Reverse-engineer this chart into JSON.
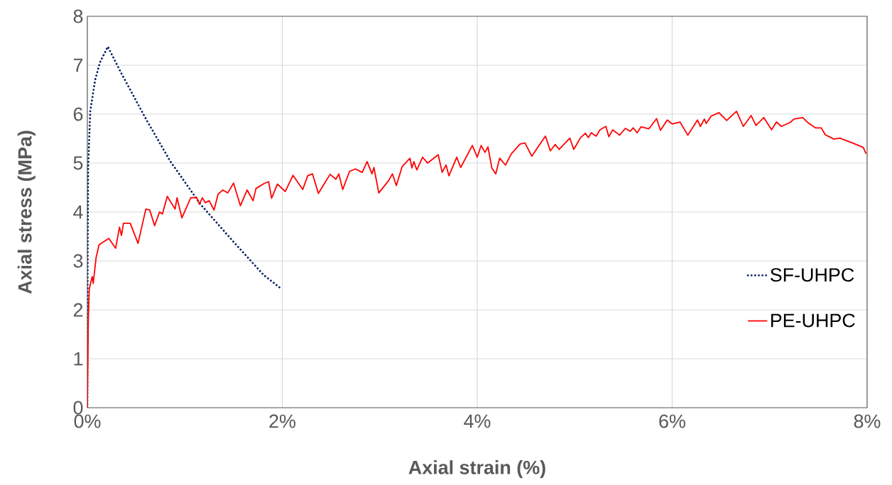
{
  "chart_data": {
    "type": "line",
    "xlabel": "Axial strain (%)",
    "ylabel": "Axial stress (MPa)",
    "xlim": [
      0,
      8
    ],
    "ylim": [
      0,
      8
    ],
    "xticks": [
      {
        "value": 0,
        "label": "0%"
      },
      {
        "value": 2,
        "label": "2%"
      },
      {
        "value": 4,
        "label": "4%"
      },
      {
        "value": 6,
        "label": "6%"
      },
      {
        "value": 8,
        "label": "8%"
      }
    ],
    "yticks": [
      0,
      1,
      2,
      3,
      4,
      5,
      6,
      7,
      8
    ],
    "grid": true,
    "legend": "right",
    "marker": "none",
    "series": [
      {
        "name": "SF-UHPC",
        "color": "#002060",
        "line_style": "dotted",
        "x": [
          0,
          0.003,
          0.008,
          0.03,
          0.08,
          0.13,
          0.21,
          0.35,
          0.61,
          0.85,
          1.16,
          1.5,
          1.81,
          1.99
        ],
        "values": [
          0,
          2.9,
          4.9,
          6.07,
          6.7,
          7.06,
          7.38,
          6.83,
          5.87,
          5.04,
          4.16,
          3.39,
          2.71,
          2.43
        ]
      },
      {
        "name": "PE-UHPC",
        "color": "#ff0000",
        "line_style": "solid",
        "x": [
          0,
          0.01,
          0.02,
          0.05,
          0.06,
          0.09,
          0.12,
          0.22,
          0.29,
          0.33,
          0.35,
          0.37,
          0.44,
          0.52,
          0.6,
          0.64,
          0.69,
          0.74,
          0.77,
          0.82,
          0.9,
          0.92,
          0.97,
          1.06,
          1.12,
          1.15,
          1.18,
          1.21,
          1.25,
          1.3,
          1.34,
          1.39,
          1.44,
          1.5,
          1.57,
          1.62,
          1.64,
          1.7,
          1.73,
          1.81,
          1.86,
          1.89,
          1.95,
          2.03,
          2.11,
          2.21,
          2.26,
          2.31,
          2.37,
          2.49,
          2.55,
          2.58,
          2.62,
          2.69,
          2.75,
          2.82,
          2.87,
          2.92,
          2.94,
          2.99,
          3.09,
          3.13,
          3.17,
          3.23,
          3.31,
          3.33,
          3.35,
          3.38,
          3.44,
          3.49,
          3.6,
          3.64,
          3.68,
          3.71,
          3.79,
          3.83,
          3.95,
          4.0,
          4.04,
          4.08,
          4.11,
          4.15,
          4.19,
          4.23,
          4.29,
          4.35,
          4.44,
          4.49,
          4.56,
          4.62,
          4.7,
          4.75,
          4.8,
          4.84,
          4.95,
          4.99,
          5.06,
          5.11,
          5.14,
          5.17,
          5.22,
          5.26,
          5.32,
          5.35,
          5.39,
          5.46,
          5.52,
          5.57,
          5.6,
          5.64,
          5.68,
          5.76,
          5.84,
          5.88,
          5.95,
          6.0,
          6.08,
          6.16,
          6.26,
          6.29,
          6.33,
          6.35,
          6.4,
          6.48,
          6.54,
          6.56,
          6.66,
          6.73,
          6.81,
          6.86,
          6.94,
          7.02,
          7.07,
          7.12,
          7.21,
          7.25,
          7.34,
          7.39,
          7.47,
          7.53,
          7.57,
          7.63,
          7.66,
          7.72,
          7.85,
          7.96,
          7.99
        ],
        "values": [
          0,
          1.83,
          2.43,
          2.68,
          2.54,
          3.07,
          3.33,
          3.46,
          3.26,
          3.69,
          3.52,
          3.77,
          3.77,
          3.36,
          4.06,
          4.04,
          3.72,
          4.0,
          3.96,
          4.32,
          4.06,
          4.29,
          3.88,
          4.29,
          4.3,
          4.16,
          4.29,
          4.19,
          4.23,
          4.04,
          4.36,
          4.45,
          4.39,
          4.59,
          4.13,
          4.36,
          4.45,
          4.23,
          4.48,
          4.58,
          4.62,
          4.28,
          4.57,
          4.42,
          4.75,
          4.46,
          4.74,
          4.78,
          4.38,
          4.77,
          4.67,
          4.78,
          4.46,
          4.83,
          4.88,
          4.81,
          5.03,
          4.78,
          4.91,
          4.39,
          4.64,
          4.78,
          4.54,
          4.93,
          5.1,
          4.9,
          5.03,
          4.86,
          5.12,
          5.0,
          5.17,
          4.81,
          4.96,
          4.74,
          5.12,
          4.91,
          5.36,
          5.12,
          5.36,
          5.22,
          5.33,
          4.9,
          4.78,
          5.1,
          4.96,
          5.19,
          5.39,
          5.41,
          5.14,
          5.32,
          5.55,
          5.25,
          5.38,
          5.28,
          5.51,
          5.28,
          5.52,
          5.61,
          5.52,
          5.62,
          5.55,
          5.68,
          5.75,
          5.54,
          5.68,
          5.57,
          5.71,
          5.65,
          5.72,
          5.62,
          5.74,
          5.7,
          5.91,
          5.67,
          5.88,
          5.8,
          5.84,
          5.57,
          5.88,
          5.75,
          5.9,
          5.81,
          5.96,
          6.03,
          5.91,
          5.87,
          6.06,
          5.75,
          5.97,
          5.77,
          5.93,
          5.68,
          5.84,
          5.75,
          5.83,
          5.9,
          5.93,
          5.83,
          5.72,
          5.72,
          5.58,
          5.52,
          5.49,
          5.51,
          5.41,
          5.32,
          5.19
        ]
      }
    ]
  }
}
